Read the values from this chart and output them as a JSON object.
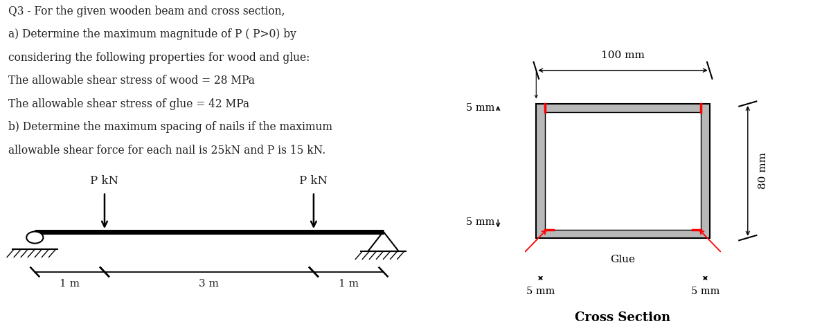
{
  "text_lines": [
    "Q3 - For the given wooden beam and cross section,",
    "a) Determine the maximum magnitude of P ( P>0) by",
    "considering the following properties for wood and glue:",
    "The allowable shear stress of wood = 28 MPa",
    "The allowable shear stress of glue = 42 MPa",
    "b) Determine the maximum spacing of nails if the maximum",
    "allowable shear force for each nail is 25kN and P is 15 kN."
  ],
  "bg_color": "#ffffff",
  "wood_gray": "#b8b8b8",
  "glue_red": "#ff0000",
  "text_fontsize": 11.2,
  "text_color": "#222222"
}
